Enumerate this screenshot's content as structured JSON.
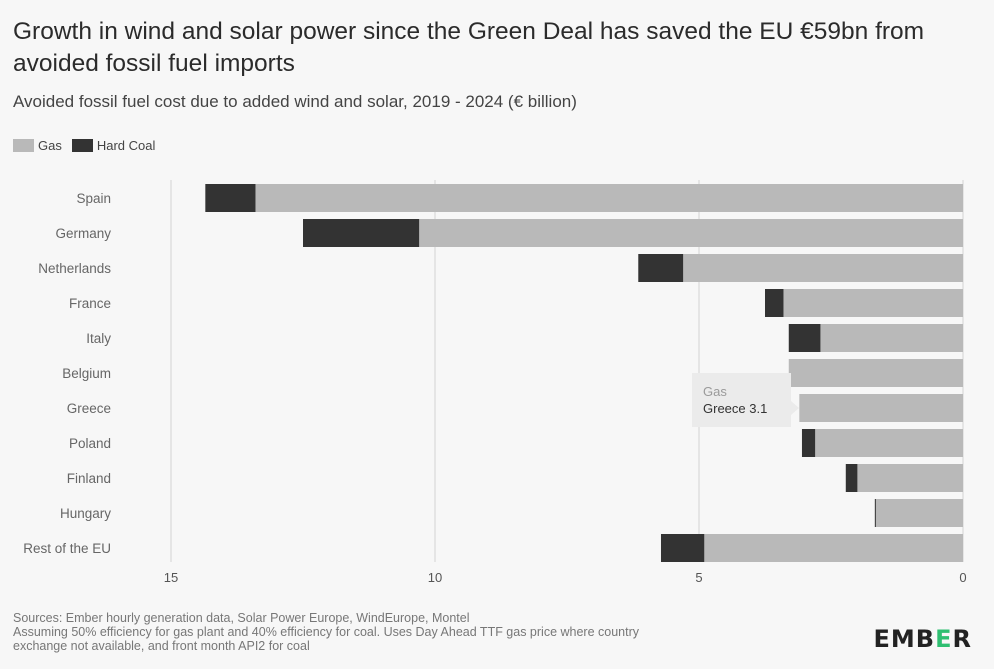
{
  "header": {
    "title": "Growth in wind and solar power since the Green Deal has saved the EU €59bn from avoided fossil fuel imports",
    "subtitle": "Avoided fossil fuel cost due to added wind and solar, 2019 - 2024 (€ billion)"
  },
  "legend": [
    {
      "label": "Gas",
      "color": "#b9b9b9"
    },
    {
      "label": "Hard Coal",
      "color": "#333333"
    }
  ],
  "chart_data": {
    "type": "bar",
    "orientation": "horizontal-reversed",
    "stacked": true,
    "categories": [
      "Spain",
      "Germany",
      "Netherlands",
      "France",
      "Italy",
      "Belgium",
      "Greece",
      "Poland",
      "Finland",
      "Hungary",
      "Rest of the EU"
    ],
    "series": [
      {
        "name": "Gas",
        "color": "#b9b9b9",
        "values": [
          13.4,
          10.3,
          5.3,
          3.4,
          2.7,
          3.3,
          3.1,
          2.8,
          2.0,
          1.65,
          4.9
        ]
      },
      {
        "name": "Hard Coal",
        "color": "#333333",
        "values": [
          0.95,
          2.2,
          0.85,
          0.35,
          0.6,
          0.0,
          0.0,
          0.25,
          0.22,
          0.02,
          0.82
        ]
      }
    ],
    "xticks": [
      15,
      10,
      5,
      0
    ],
    "xlim": [
      0,
      15
    ],
    "grid": true,
    "legend_position": "top-left",
    "tooltip": {
      "series": "Gas",
      "label": "Greece 3.1",
      "category": "Greece"
    }
  },
  "footer": {
    "sources": "Sources: Ember hourly generation data, Solar Power Europe, WindEurope, Montel",
    "note1": "Assuming 50% efficiency for gas plant and 40% efficiency for coal. Uses Day Ahead TTF gas price where country",
    "note2": "exchange not available, and front month API2 for coal"
  },
  "logo": {
    "part1": "EMB",
    "part2": "E",
    "part3": "R"
  }
}
